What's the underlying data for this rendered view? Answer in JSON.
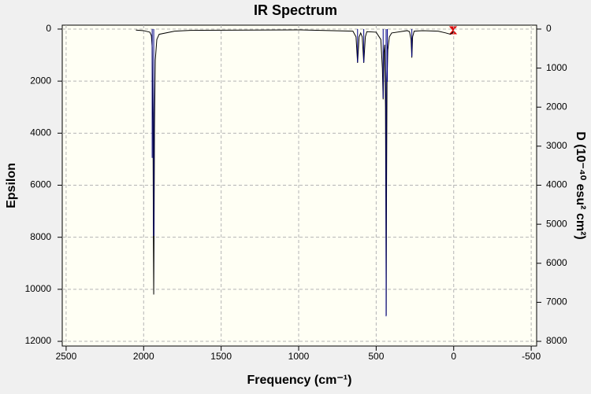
{
  "chart_data": {
    "type": "line",
    "title": "IR Spectrum",
    "x_label": "Frequency (cm⁻¹)",
    "y_label": "Epsilon",
    "y2_label": "D (10⁻⁴⁰ esu² cm²)",
    "xlim": [
      2525,
      -535
    ],
    "ylim": [
      -150,
      12180
    ],
    "y2lim": [
      -100,
      8120
    ],
    "xticks": [
      2500,
      2000,
      1500,
      1000,
      500,
      0,
      -500
    ],
    "yticks": [
      0,
      2000,
      4000,
      6000,
      8000,
      10000,
      12000
    ],
    "y2ticks": [
      0,
      1000,
      2000,
      3000,
      4000,
      5000,
      6000,
      7000,
      8000
    ],
    "grid": true,
    "series": [
      {
        "name": "Epsilon",
        "color": "#000000",
        "x": [
          2050,
          2000,
          1960,
          1950,
          1945,
          1940,
          1937,
          1935,
          1933,
          1930,
          1925,
          1915,
          1900,
          1800,
          1700,
          1000,
          650,
          630,
          620,
          610,
          600,
          590,
          580,
          570,
          560,
          500,
          470,
          460,
          455,
          450,
          445,
          440,
          437,
          435,
          433,
          430,
          425,
          415,
          400,
          300,
          285,
          275,
          270,
          265,
          255,
          200,
          100,
          50,
          20,
          0
        ],
        "values": [
          40,
          60,
          120,
          250,
          700,
          3500,
          8000,
          10200,
          8000,
          3800,
          1200,
          400,
          200,
          80,
          50,
          30,
          80,
          300,
          1300,
          300,
          150,
          300,
          1300,
          300,
          100,
          120,
          400,
          1500,
          2700,
          900,
          600,
          3000,
          8000,
          11000,
          6000,
          2000,
          800,
          300,
          150,
          60,
          100,
          400,
          1100,
          300,
          80,
          60,
          80,
          150,
          200,
          100
        ]
      },
      {
        "name": "D",
        "color": "#00008b",
        "axis": "y2",
        "style": "sticks",
        "x": [
          1945,
          1935,
          620,
          580,
          455,
          436,
          428,
          270
        ],
        "values": [
          3300,
          5300,
          850,
          850,
          1770,
          7360,
          1350,
          700
        ]
      }
    ]
  }
}
